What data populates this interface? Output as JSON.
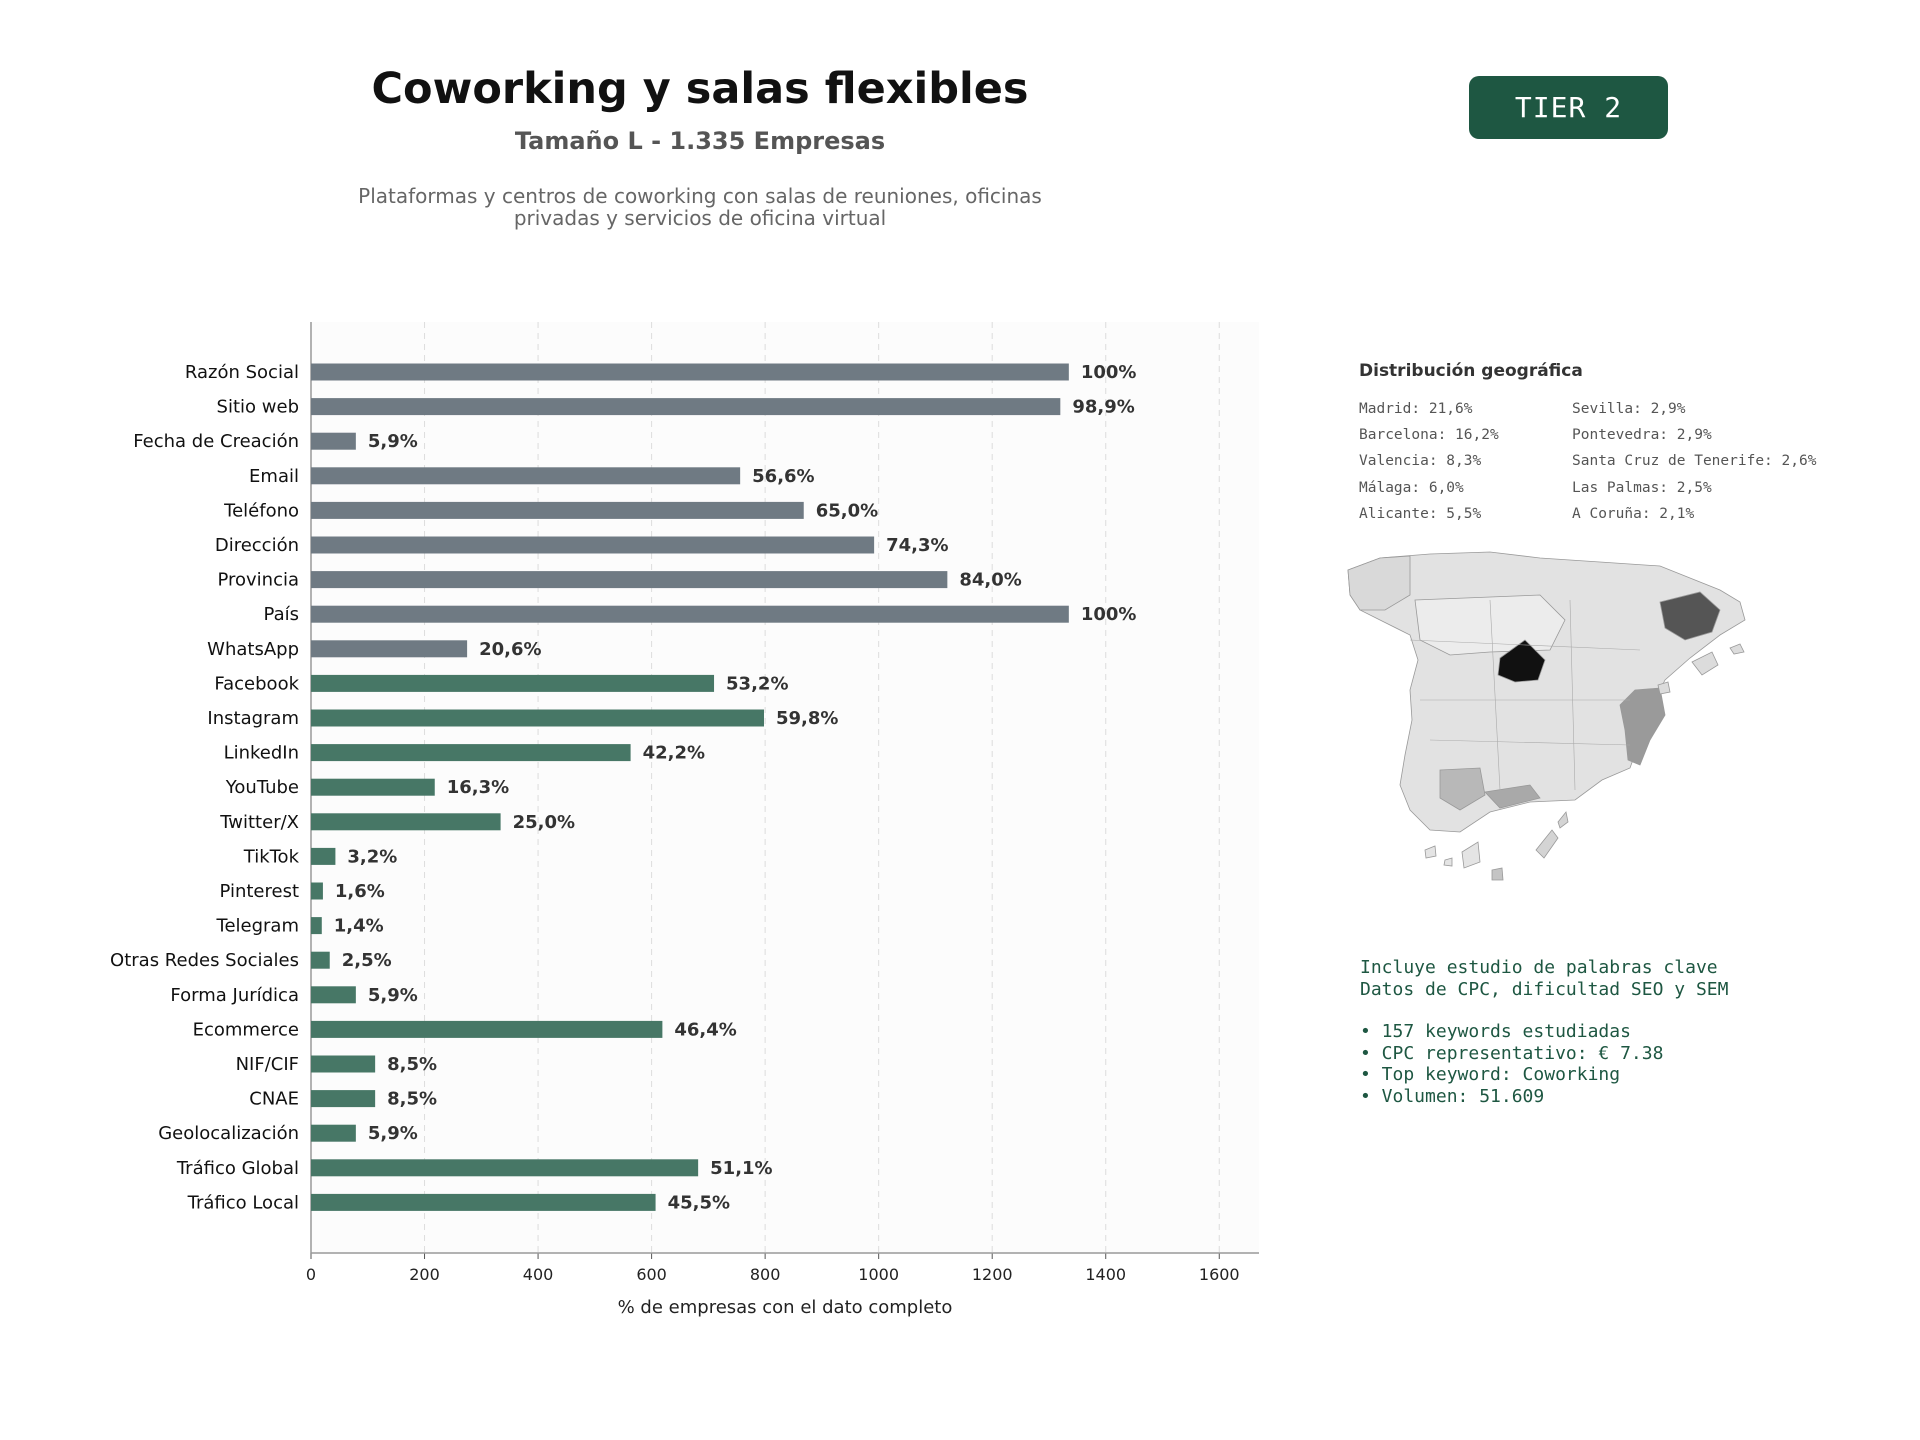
{
  "header": {
    "title": "Coworking y salas flexibles",
    "subtitle": "Tamaño L - 1.335 Empresas",
    "description_line1": "Plataformas y centros de coworking con salas de reuniones, oficinas",
    "description_line2": "privadas y servicios de oficina virtual",
    "tier_badge": "TIER 2"
  },
  "chart_data": {
    "type": "bar",
    "orientation": "horizontal",
    "xlabel": "% de empresas con el dato completo",
    "xlim": [
      0,
      1670
    ],
    "xticks": [
      0,
      200,
      400,
      600,
      800,
      1000,
      1200,
      1400,
      1600
    ],
    "grid": "vertical dashed",
    "categories": [
      "Razón Social",
      "Sitio web",
      "Fecha de Creación",
      "Email",
      "Teléfono",
      "Dirección",
      "Provincia",
      "País",
      "WhatsApp",
      "Facebook",
      "Instagram",
      "LinkedIn",
      "YouTube",
      "Twitter/X",
      "TikTok",
      "Pinterest",
      "Telegram",
      "Otras Redes Sociales",
      "Forma Jurídica",
      "Ecommerce",
      "NIF/CIF",
      "CNAE",
      "Geolocalización",
      "Tráfico Global",
      "Tráfico Local"
    ],
    "values": [
      1335,
      1320,
      79,
      756,
      868,
      992,
      1121,
      1335,
      275,
      710,
      798,
      563,
      218,
      334,
      43,
      21,
      19,
      33,
      79,
      619,
      113,
      113,
      79,
      682,
      607
    ],
    "labels": [
      "100%",
      "98,9%",
      "5,9%",
      "56,6%",
      "65,0%",
      "74,3%",
      "84,0%",
      "100%",
      "20,6%",
      "53,2%",
      "59,8%",
      "42,2%",
      "16,3%",
      "25,0%",
      "3,2%",
      "1,6%",
      "1,4%",
      "2,5%",
      "5,9%",
      "46,4%",
      "8,5%",
      "8,5%",
      "5,9%",
      "51,1%",
      "45,5%"
    ],
    "groups": [
      "gray",
      "gray",
      "gray",
      "gray",
      "gray",
      "gray",
      "gray",
      "gray",
      "gray",
      "green",
      "green",
      "green",
      "green",
      "green",
      "green",
      "green",
      "green",
      "green",
      "green",
      "green",
      "green",
      "green",
      "green",
      "green",
      "green"
    ],
    "colors": {
      "gray": "#6f7a83",
      "green": "#477766"
    }
  },
  "geo": {
    "title": "Distribución geográfica",
    "col1": [
      "Madrid: 21,6%",
      "Barcelona: 16,2%",
      "Valencia: 8,3%",
      "Málaga: 6,0%",
      "Alicante: 5,5%"
    ],
    "col2": [
      "Sevilla: 2,9%",
      "Pontevedra: 2,9%",
      "Santa Cruz de Tenerife: 2,6%",
      "Las Palmas: 2,5%",
      "A Coruña: 2,1%"
    ]
  },
  "keywords": {
    "line1": "Incluye estudio de palabras clave",
    "line2": "Datos de CPC, dificultad SEO y SEM",
    "bullets": [
      "• 157 keywords estudiadas",
      "• CPC representativo: € 7.38",
      "• Top keyword: Coworking",
      "• Volumen: 51.609"
    ]
  }
}
